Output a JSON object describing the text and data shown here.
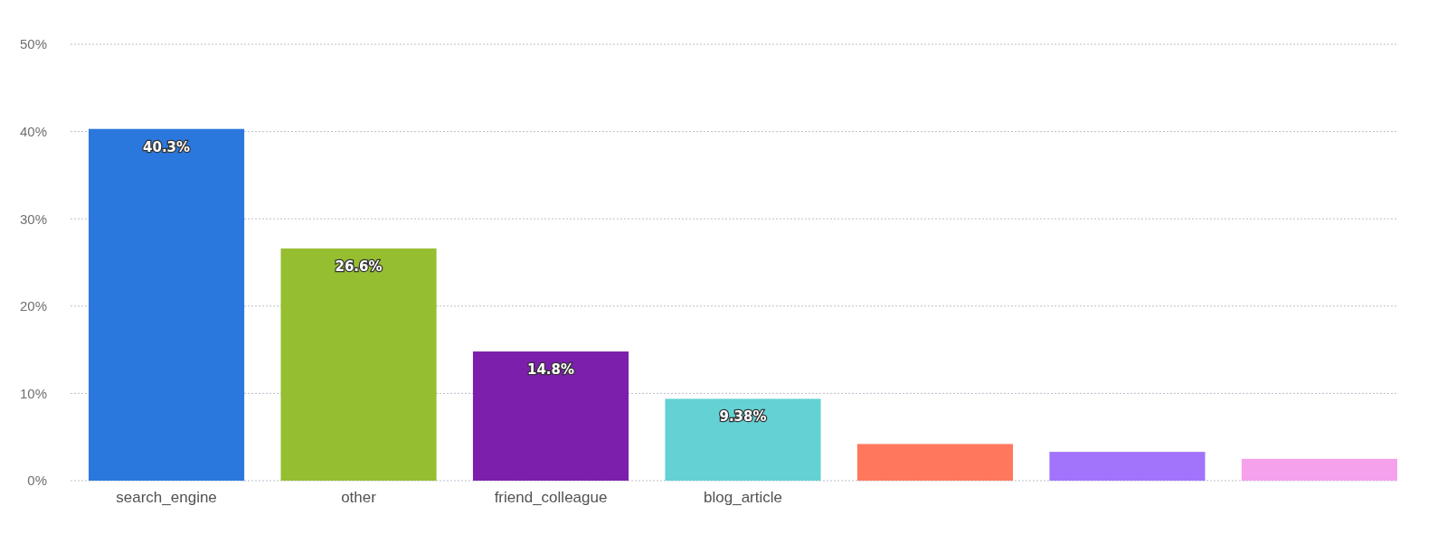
{
  "chart_data": {
    "type": "bar",
    "categories": [
      "search_engine",
      "other",
      "friend_colleague",
      "blog_article",
      null,
      null,
      null
    ],
    "values": [
      40.3,
      26.6,
      14.8,
      9.38,
      4.2,
      3.3,
      2.5
    ],
    "value_labels": [
      "40.3%",
      "26.6%",
      "14.8%",
      "9.38%",
      null,
      null,
      null
    ],
    "colors": [
      "#2a78de",
      "#95be31",
      "#7d1fad",
      "#64d1d4",
      "#ff775c",
      "#a274fb",
      "#f5a1ec"
    ],
    "ylim": [
      0,
      50
    ],
    "yticks": [
      {
        "value": 0,
        "label": "0%"
      },
      {
        "value": 10,
        "label": "10%"
      },
      {
        "value": 20,
        "label": "20%"
      },
      {
        "value": 30,
        "label": "30%"
      },
      {
        "value": 40,
        "label": "40%"
      },
      {
        "value": 50,
        "label": "50%"
      }
    ],
    "grid": "y"
  }
}
